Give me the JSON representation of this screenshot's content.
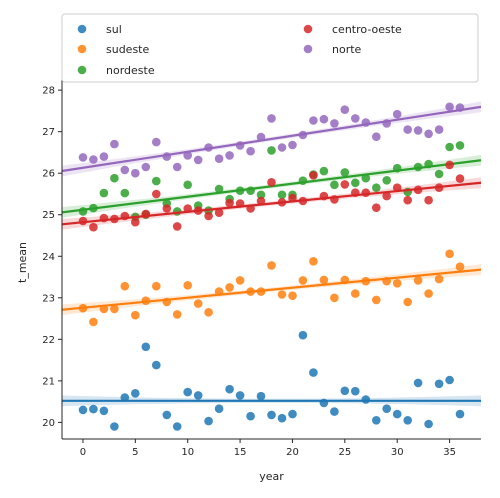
{
  "chart_data": {
    "type": "scatter",
    "xlabel": "year",
    "ylabel": "t_mean",
    "xlim": [
      -2,
      38
    ],
    "ylim": [
      19.6,
      28.1
    ],
    "xticks": [
      0,
      5,
      10,
      15,
      20,
      25,
      30,
      35
    ],
    "yticks": [
      20,
      21,
      22,
      23,
      24,
      25,
      26,
      27,
      28
    ],
    "legend_position": "top",
    "series": [
      {
        "name": "sul",
        "color": "#1f77b4",
        "x": [
          0,
          1,
          2,
          3,
          4,
          5,
          6,
          7,
          8,
          9,
          10,
          11,
          12,
          13,
          14,
          15,
          16,
          17,
          18,
          19,
          20,
          21,
          22,
          23,
          24,
          25,
          26,
          27,
          28,
          29,
          30,
          31,
          32,
          33,
          34,
          35,
          36
        ],
        "y": [
          20.3,
          20.32,
          20.28,
          19.9,
          20.6,
          20.7,
          21.82,
          21.38,
          20.18,
          19.9,
          20.73,
          20.65,
          20.03,
          20.33,
          20.8,
          20.65,
          20.15,
          20.63,
          20.18,
          20.1,
          20.2,
          22.1,
          21.2,
          20.47,
          20.26,
          20.76,
          20.75,
          20.55,
          20.05,
          20.33,
          20.2,
          20.05,
          20.95,
          19.96,
          20.93,
          21.02,
          20.2
        ],
        "fit": [
          20.52,
          20.52
        ]
      },
      {
        "name": "sudeste",
        "color": "#ff7f0e",
        "x": [
          0,
          1,
          2,
          3,
          4,
          5,
          6,
          7,
          8,
          9,
          10,
          11,
          12,
          13,
          14,
          15,
          16,
          17,
          18,
          19,
          20,
          21,
          22,
          23,
          24,
          25,
          26,
          27,
          28,
          29,
          30,
          31,
          32,
          33,
          34,
          35,
          36
        ],
        "y": [
          22.75,
          22.42,
          22.73,
          22.73,
          23.28,
          22.58,
          22.93,
          23.28,
          22.9,
          22.6,
          23.3,
          22.86,
          22.65,
          23.15,
          23.25,
          23.42,
          23.15,
          23.15,
          23.78,
          23.08,
          23.05,
          23.42,
          23.88,
          23.43,
          23.0,
          23.43,
          23.1,
          23.4,
          22.95,
          23.4,
          23.35,
          22.9,
          23.42,
          23.1,
          23.45,
          24.06,
          23.75
        ],
        "fit": [
          22.76,
          23.63
        ]
      },
      {
        "name": "nordeste",
        "color": "#2ca02c",
        "x": [
          0,
          1,
          2,
          3,
          4,
          5,
          6,
          7,
          8,
          9,
          10,
          11,
          12,
          13,
          14,
          15,
          16,
          17,
          18,
          19,
          20,
          21,
          22,
          23,
          24,
          25,
          26,
          27,
          28,
          29,
          30,
          31,
          32,
          33,
          34,
          35,
          36
        ],
        "y": [
          25.08,
          25.16,
          25.52,
          25.88,
          25.52,
          24.95,
          25.0,
          25.81,
          25.27,
          25.08,
          25.72,
          25.22,
          25.1,
          25.62,
          25.38,
          25.58,
          25.58,
          25.48,
          26.55,
          25.48,
          25.48,
          25.82,
          25.97,
          26.05,
          25.72,
          26.02,
          25.77,
          25.88,
          25.65,
          25.83,
          26.12,
          25.55,
          26.15,
          26.22,
          25.98,
          26.63,
          26.67
        ],
        "fit": [
          25.12,
          26.25
        ]
      },
      {
        "name": "centro-oeste",
        "color": "#d62728",
        "x": [
          0,
          1,
          2,
          3,
          4,
          5,
          6,
          7,
          8,
          9,
          10,
          11,
          12,
          13,
          14,
          15,
          16,
          17,
          18,
          19,
          20,
          21,
          22,
          23,
          24,
          25,
          26,
          27,
          28,
          29,
          30,
          31,
          32,
          33,
          34,
          35,
          36
        ],
        "y": [
          24.85,
          24.7,
          24.92,
          24.9,
          24.97,
          24.82,
          25.02,
          25.5,
          25.15,
          24.72,
          25.15,
          25.1,
          24.97,
          25.05,
          25.28,
          25.27,
          25.15,
          25.33,
          25.78,
          25.3,
          25.4,
          25.33,
          25.95,
          25.45,
          25.37,
          25.73,
          25.53,
          25.53,
          25.17,
          25.45,
          25.65,
          25.35,
          25.6,
          25.35,
          25.65,
          26.2,
          25.87
        ],
        "fit": [
          24.82,
          25.72
        ]
      },
      {
        "name": "norte",
        "color": "#9467bd",
        "x": [
          0,
          1,
          2,
          3,
          4,
          5,
          6,
          7,
          8,
          9,
          10,
          11,
          12,
          13,
          14,
          15,
          16,
          17,
          18,
          19,
          20,
          21,
          22,
          23,
          24,
          25,
          26,
          27,
          28,
          29,
          30,
          31,
          32,
          33,
          34,
          35,
          36
        ],
        "y": [
          26.38,
          26.33,
          26.4,
          26.7,
          26.08,
          26.0,
          26.15,
          26.75,
          26.4,
          26.15,
          26.43,
          26.32,
          26.62,
          26.35,
          26.43,
          26.67,
          26.53,
          26.87,
          27.32,
          26.62,
          26.68,
          26.92,
          27.27,
          27.3,
          27.2,
          27.53,
          27.32,
          27.22,
          26.88,
          27.2,
          27.42,
          27.05,
          27.03,
          26.95,
          27.05,
          27.6,
          27.58
        ],
        "fit": [
          26.13,
          27.52
        ]
      }
    ]
  }
}
